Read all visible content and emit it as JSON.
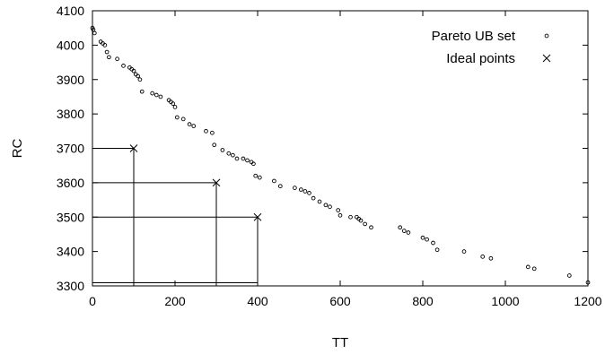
{
  "chart_data": {
    "type": "scatter",
    "title": "",
    "xlabel": "TT",
    "ylabel": "RC",
    "xlim": [
      0,
      1200
    ],
    "ylim": [
      3300,
      4100
    ],
    "xticks": [
      0,
      200,
      400,
      600,
      800,
      1000,
      1200
    ],
    "yticks": [
      3300,
      3400,
      3500,
      3600,
      3700,
      3800,
      3900,
      4000,
      4100
    ],
    "grid": false,
    "legend_position": "top-right",
    "series": [
      {
        "name": "Pareto UB set",
        "marker": "circle",
        "points": [
          [
            0,
            4050
          ],
          [
            2,
            4045
          ],
          [
            5,
            4035
          ],
          [
            20,
            4010
          ],
          [
            25,
            4005
          ],
          [
            30,
            4000
          ],
          [
            35,
            3980
          ],
          [
            40,
            3965
          ],
          [
            60,
            3960
          ],
          [
            75,
            3940
          ],
          [
            90,
            3935
          ],
          [
            95,
            3930
          ],
          [
            100,
            3925
          ],
          [
            105,
            3915
          ],
          [
            110,
            3910
          ],
          [
            115,
            3900
          ],
          [
            120,
            3865
          ],
          [
            145,
            3860
          ],
          [
            155,
            3855
          ],
          [
            165,
            3850
          ],
          [
            185,
            3840
          ],
          [
            190,
            3835
          ],
          [
            195,
            3830
          ],
          [
            200,
            3820
          ],
          [
            205,
            3790
          ],
          [
            220,
            3785
          ],
          [
            235,
            3770
          ],
          [
            245,
            3765
          ],
          [
            275,
            3750
          ],
          [
            290,
            3745
          ],
          [
            295,
            3710
          ],
          [
            315,
            3695
          ],
          [
            330,
            3685
          ],
          [
            340,
            3680
          ],
          [
            350,
            3670
          ],
          [
            365,
            3670
          ],
          [
            375,
            3665
          ],
          [
            385,
            3660
          ],
          [
            390,
            3655
          ],
          [
            395,
            3620
          ],
          [
            405,
            3615
          ],
          [
            440,
            3605
          ],
          [
            455,
            3590
          ],
          [
            490,
            3585
          ],
          [
            505,
            3580
          ],
          [
            515,
            3575
          ],
          [
            525,
            3570
          ],
          [
            535,
            3555
          ],
          [
            550,
            3545
          ],
          [
            565,
            3535
          ],
          [
            575,
            3530
          ],
          [
            595,
            3520
          ],
          [
            600,
            3505
          ],
          [
            625,
            3500
          ],
          [
            640,
            3500
          ],
          [
            645,
            3495
          ],
          [
            650,
            3490
          ],
          [
            660,
            3480
          ],
          [
            675,
            3470
          ],
          [
            745,
            3470
          ],
          [
            755,
            3460
          ],
          [
            765,
            3455
          ],
          [
            800,
            3440
          ],
          [
            810,
            3435
          ],
          [
            825,
            3425
          ],
          [
            835,
            3405
          ],
          [
            900,
            3400
          ],
          [
            945,
            3385
          ],
          [
            965,
            3380
          ],
          [
            1055,
            3355
          ],
          [
            1070,
            3350
          ],
          [
            1155,
            3330
          ],
          [
            1200,
            3310
          ]
        ]
      },
      {
        "name": "Ideal points",
        "marker": "x",
        "points": [
          [
            100,
            3700
          ],
          [
            300,
            3600
          ],
          [
            400,
            3500
          ]
        ]
      }
    ]
  }
}
